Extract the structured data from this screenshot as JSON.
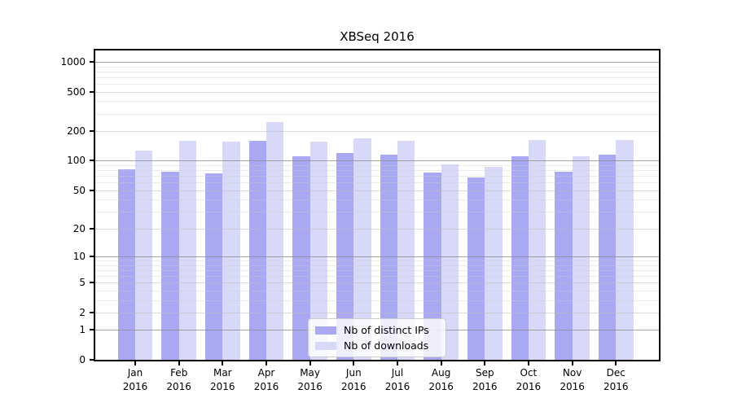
{
  "chart_data": {
    "type": "bar",
    "title": "XBSeq 2016",
    "categories": [
      "Jan 2016",
      "Feb 2016",
      "Mar 2016",
      "Apr 2016",
      "May 2016",
      "Jun 2016",
      "Jul 2016",
      "Aug 2016",
      "Sep 2016",
      "Oct 2016",
      "Nov 2016",
      "Dec 2016"
    ],
    "series": [
      {
        "name": "Nb of distinct IPs",
        "color": "#a8a8f3",
        "values": [
          82,
          77,
          74,
          158,
          110,
          119,
          115,
          76,
          68,
          112,
          78,
          115
        ]
      },
      {
        "name": "Nb of downloads",
        "color": "#d8d8f8",
        "values": [
          128,
          159,
          157,
          245,
          156,
          168,
          158,
          91,
          86,
          161,
          110,
          161
        ]
      }
    ],
    "xlabel": "",
    "ylabel": "",
    "yscale": "log1p",
    "ylim": [
      0,
      1300
    ],
    "yticks": [
      0,
      1,
      2,
      5,
      10,
      20,
      50,
      100,
      200,
      500,
      1000
    ],
    "grid": true,
    "legend_position": "lower center"
  },
  "colors": {
    "background": "#ffffff",
    "axis": "#000000",
    "major_gridline": "#8c8c8c",
    "minor_gridline": "#dcdcdc",
    "legend_border": "#cccccc"
  }
}
